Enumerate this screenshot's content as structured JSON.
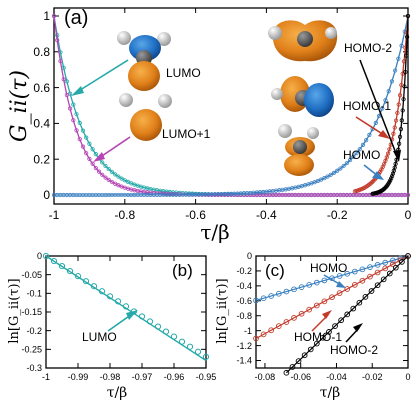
{
  "chart_data": [
    {
      "id": "a",
      "type": "scatter",
      "panel_label": "(a)",
      "xlabel": "τ/β",
      "ylabel": "G_ii(τ)",
      "xlim": [
        -1,
        0
      ],
      "ylim": [
        0,
        1
      ],
      "xticks": [
        "-1",
        "-0.8",
        "-0.6",
        "-0.4",
        "-0.2",
        "0"
      ],
      "yticks": [
        "0",
        "0.2",
        "0.4",
        "0.6",
        "0.8",
        "1"
      ],
      "series": [
        {
          "name": "LUMO",
          "color": "#26a9a9",
          "decay_rate": 12.5,
          "side": "left",
          "x_range": [
            -1,
            0
          ]
        },
        {
          "name": "LUMO+1",
          "color": "#b545b5",
          "decay_rate": 16,
          "side": "left",
          "x_range": [
            -1,
            0
          ]
        },
        {
          "name": "HOMO",
          "color": "#3a7fc0",
          "decay_rate": 10,
          "side": "right",
          "x_range": [
            -1,
            0
          ]
        },
        {
          "name": "HOMO-1",
          "color": "#c33a2a",
          "decay_rate": 26,
          "side": "right",
          "x_range": [
            -0.15,
            0
          ]
        },
        {
          "name": "HOMO-2",
          "color": "#000000",
          "decay_rate": 50,
          "side": "right",
          "x_range": [
            -0.1,
            0
          ]
        }
      ],
      "annotations": [
        "LUMO",
        "LUMO+1",
        "HOMO-2",
        "HOMO-1",
        "HOMO"
      ],
      "icons": [
        "water-molecule-orbital-icon"
      ]
    },
    {
      "id": "b",
      "type": "scatter",
      "panel_label": "(b)",
      "xlabel": "τ/β",
      "ylabel": "ln[G_ii(τ)]",
      "xlim": [
        -1,
        -0.95
      ],
      "ylim": [
        -0.3,
        0
      ],
      "xticks": [
        "-1",
        "-0.99",
        "-0.98",
        "-0.97",
        "-0.96",
        "-0.95"
      ],
      "yticks": [
        "0",
        "-0.05",
        "-0.1",
        "-0.15",
        "-0.2",
        "-0.25",
        "-0.3"
      ],
      "series": [
        {
          "name": "LUMO",
          "color": "#26a9a9",
          "fit_slope": -5.6,
          "data_rate": 5.4,
          "x_range": [
            -1,
            -0.95
          ]
        }
      ],
      "annotations": [
        "LUMO"
      ]
    },
    {
      "id": "c",
      "type": "scatter",
      "panel_label": "(c)",
      "xlabel": "τ/β",
      "ylabel": "ln[G_ii(τ)]",
      "xlim": [
        -0.085,
        0
      ],
      "ylim": [
        -1.5,
        0
      ],
      "xticks": [
        "-0.08",
        "-0.06",
        "-0.04",
        "-0.02",
        "0"
      ],
      "yticks": [
        "0",
        "-0.2",
        "-0.4",
        "-0.6",
        "-0.8",
        "-1",
        "-1.2",
        "-1.4"
      ],
      "series": [
        {
          "name": "HOMO",
          "color": "#3a7fc0",
          "slope": 7,
          "x_range": [
            -0.085,
            0
          ]
        },
        {
          "name": "HOMO-1",
          "color": "#c33a2a",
          "slope": 13,
          "x_range": [
            -0.085,
            0
          ]
        },
        {
          "name": "HOMO-2",
          "color": "#000000",
          "slope": 23,
          "x_range": [
            -0.068,
            0
          ]
        }
      ],
      "annotations": [
        "HOMO",
        "HOMO-1",
        "HOMO-2"
      ]
    }
  ]
}
